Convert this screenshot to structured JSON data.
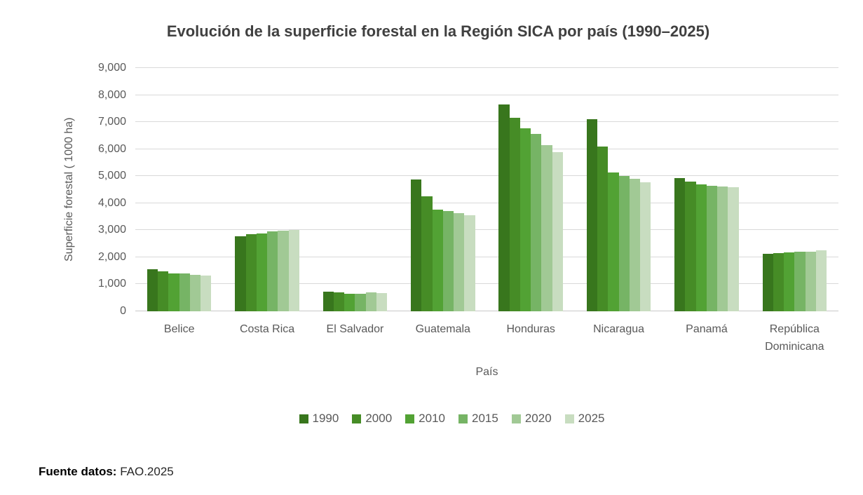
{
  "chart_data": {
    "type": "bar",
    "title": "Evolución de la superficie forestal en la Región SICA por país (1990–2025)",
    "xlabel": "País",
    "ylabel": "Superficie forestal ( 1000 ha)",
    "ylim": [
      0,
      9000
    ],
    "grid": "horizontal",
    "gridline_color": "#d9d9d9",
    "legend_position": "bottom",
    "yticks": [
      {
        "value": 0,
        "label": "0"
      },
      {
        "value": 1000,
        "label": "1,000"
      },
      {
        "value": 2000,
        "label": "2,000"
      },
      {
        "value": 3000,
        "label": "3,000"
      },
      {
        "value": 4000,
        "label": "4,000"
      },
      {
        "value": 5000,
        "label": "5,000"
      },
      {
        "value": 6000,
        "label": "6,000"
      },
      {
        "value": 7000,
        "label": "7,000"
      },
      {
        "value": 8000,
        "label": "8,000"
      },
      {
        "value": 9000,
        "label": "9,000"
      }
    ],
    "categories": [
      "Belice",
      "Costa Rica",
      "El Salvador",
      "Guatemala",
      "Honduras",
      "Nicaragua",
      "Panamá",
      "República Dominicana"
    ],
    "series": [
      {
        "name": "1990",
        "color": "#38761d",
        "values": [
          1560,
          2770,
          730,
          4870,
          7650,
          7100,
          4930,
          2120
        ]
      },
      {
        "name": "2000",
        "color": "#468c26",
        "values": [
          1490,
          2850,
          705,
          4250,
          7150,
          6100,
          4800,
          2150
        ]
      },
      {
        "name": "2010",
        "color": "#52a234",
        "values": [
          1410,
          2890,
          660,
          3760,
          6770,
          5130,
          4700,
          2180
        ]
      },
      {
        "name": "2015",
        "color": "#76b465",
        "values": [
          1390,
          2950,
          645,
          3710,
          6560,
          5000,
          4650,
          2200
        ]
      },
      {
        "name": "2020",
        "color": "#a1c995",
        "values": [
          1360,
          2980,
          690,
          3630,
          6150,
          4900,
          4620,
          2210
        ]
      },
      {
        "name": "2025",
        "color": "#c8ddc0",
        "values": [
          1320,
          3000,
          675,
          3550,
          5890,
          4770,
          4600,
          2260
        ]
      }
    ]
  },
  "footer": {
    "label": "Fuente datos:",
    "value": "FAO.2025"
  }
}
